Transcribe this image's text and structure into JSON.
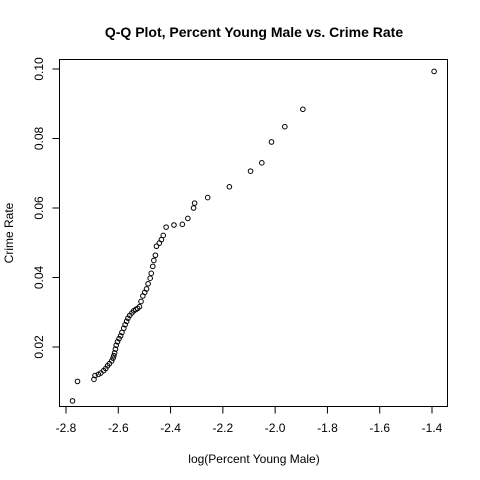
{
  "chart_data": {
    "type": "scatter",
    "title": "Q-Q Plot, Percent Young Male vs. Crime Rate",
    "xlabel": "log(Percent Young Male)",
    "ylabel": "Crime Rate",
    "xlim": [
      -2.8,
      -1.4
    ],
    "ylim": [
      0.0,
      0.1
    ],
    "x_ticks": [
      -2.8,
      -2.6,
      -2.4,
      -2.2,
      -2.0,
      -1.8,
      -1.6,
      -1.4
    ],
    "x_tick_labels": [
      "-2.8",
      "-2.6",
      "-2.4",
      "-2.2",
      "-2.0",
      "-1.8",
      "-1.6",
      "-1.4"
    ],
    "y_ticks": [
      0.02,
      0.04,
      0.06,
      0.08,
      0.1
    ],
    "y_tick_labels": [
      "0.02",
      "0.04",
      "0.06",
      "0.08",
      "0.10"
    ],
    "grid": false,
    "marker": "open-circle",
    "points": [
      [
        -2.775,
        0.0045
      ],
      [
        -2.756,
        0.0101
      ],
      [
        -2.693,
        0.0107
      ],
      [
        -2.689,
        0.0118
      ],
      [
        -2.676,
        0.0121
      ],
      [
        -2.667,
        0.0125
      ],
      [
        -2.656,
        0.0132
      ],
      [
        -2.648,
        0.0138
      ],
      [
        -2.641,
        0.0146
      ],
      [
        -2.634,
        0.0152
      ],
      [
        -2.625,
        0.016
      ],
      [
        -2.62,
        0.0168
      ],
      [
        -2.617,
        0.0175
      ],
      [
        -2.614,
        0.0183
      ],
      [
        -2.611,
        0.0194
      ],
      [
        -2.608,
        0.0205
      ],
      [
        -2.603,
        0.0215
      ],
      [
        -2.597,
        0.0224
      ],
      [
        -2.591,
        0.0232
      ],
      [
        -2.586,
        0.0242
      ],
      [
        -2.579,
        0.0254
      ],
      [
        -2.574,
        0.0264
      ],
      [
        -2.568,
        0.0274
      ],
      [
        -2.563,
        0.0283
      ],
      [
        -2.556,
        0.0291
      ],
      [
        -2.548,
        0.0298
      ],
      [
        -2.541,
        0.0304
      ],
      [
        -2.533,
        0.0308
      ],
      [
        -2.526,
        0.0311
      ],
      [
        -2.519,
        0.0316
      ],
      [
        -2.513,
        0.0331
      ],
      [
        -2.506,
        0.0347
      ],
      [
        -2.499,
        0.0357
      ],
      [
        -2.492,
        0.0367
      ],
      [
        -2.486,
        0.0382
      ],
      [
        -2.478,
        0.0398
      ],
      [
        -2.474,
        0.0412
      ],
      [
        -2.468,
        0.0432
      ],
      [
        -2.464,
        0.0449
      ],
      [
        -2.458,
        0.0464
      ],
      [
        -2.454,
        0.049
      ],
      [
        -2.443,
        0.0499
      ],
      [
        -2.435,
        0.0509
      ],
      [
        -2.428,
        0.0521
      ],
      [
        -2.417,
        0.0545
      ],
      [
        -2.387,
        0.0551
      ],
      [
        -2.355,
        0.0553
      ],
      [
        -2.334,
        0.057
      ],
      [
        -2.312,
        0.06
      ],
      [
        -2.308,
        0.0614
      ],
      [
        -2.258,
        0.063
      ],
      [
        -2.175,
        0.0661
      ],
      [
        -2.094,
        0.0706
      ],
      [
        -2.051,
        0.073
      ],
      [
        -2.014,
        0.079
      ],
      [
        -1.963,
        0.0834
      ],
      [
        -1.894,
        0.0884
      ],
      [
        -1.392,
        0.0993
      ]
    ]
  }
}
